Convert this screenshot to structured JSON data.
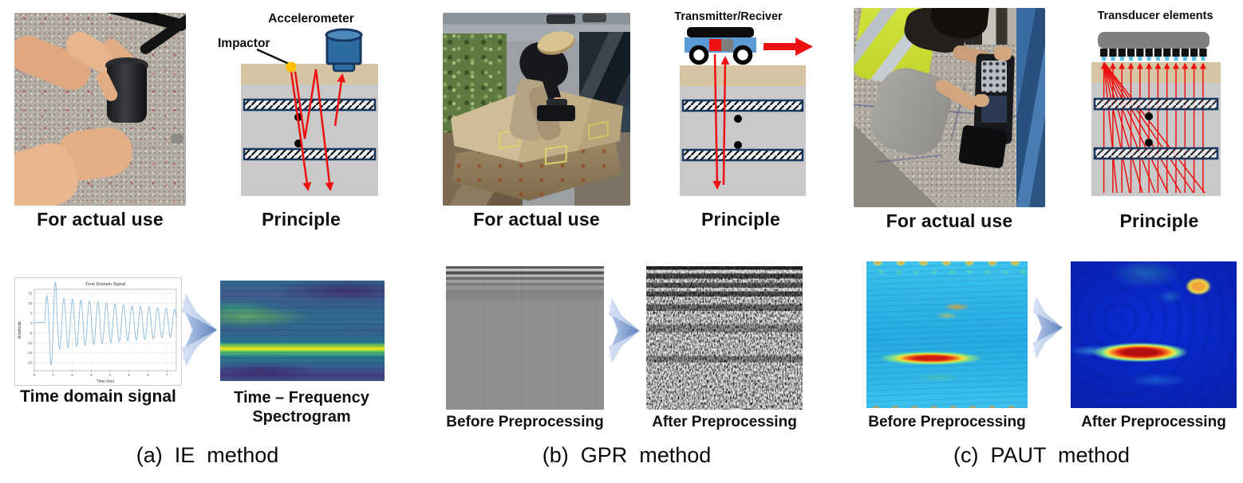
{
  "figure": {
    "panels": [
      {
        "label": "(a)  IE  method",
        "photo_caption": "For actual use",
        "principle_caption": "Principle",
        "labels": {
          "impactor": "Impactor",
          "accelerometer": "Accelerometer"
        },
        "signal_caption": "Time domain signal",
        "spectrogram_caption_line1": "Time – Frequency",
        "spectrogram_caption_line2": "Spectrogram"
      },
      {
        "label": "(b)  GPR  method",
        "photo_caption": "For actual use",
        "principle_caption": "Principle",
        "labels": {
          "device": "Transmitter/Reciver"
        },
        "before_caption": "Before Preprocessing",
        "after_caption": "After Preprocessing"
      },
      {
        "label": "(c)  PAUT  method",
        "photo_caption": "For actual use",
        "principle_caption": "Principle",
        "labels": {
          "device": "Transducer elements"
        },
        "before_caption": "Before Preprocessing",
        "after_caption": "After Preprocessing"
      }
    ]
  },
  "chart_data": {
    "type": "line",
    "title": "Time Domain Signal",
    "xlabel": "Time (ms)",
    "ylabel": "Amplitude",
    "xlim": [
      0,
      7.5
    ],
    "ylim": [
      -24,
      17
    ],
    "xticks": [
      0,
      1,
      2,
      3,
      4,
      5,
      6,
      7
    ],
    "yticks": [
      15,
      10,
      5,
      0,
      -5,
      -10,
      -15,
      -20
    ],
    "line_color": "#7fb2d9",
    "grid": true,
    "signal": {
      "flat_until": 0.55,
      "period": 0.45,
      "base_amplitude": 14,
      "decay_per_ms": 0.1,
      "first_trough": -22
    }
  },
  "colors": {
    "ray_red": "#ee1111",
    "rebar_outline": "#17375e",
    "concrete_top": "#d5c5a3",
    "concrete_body": "#c9c9c9",
    "accelerometer_blue": "#2d6ca2",
    "impactor_yellow": "#ffc000",
    "cart_blue": "#5b9bd5",
    "transducer_gray": "#7f7f7f",
    "process_arrow_blue": "#9fb6de"
  }
}
